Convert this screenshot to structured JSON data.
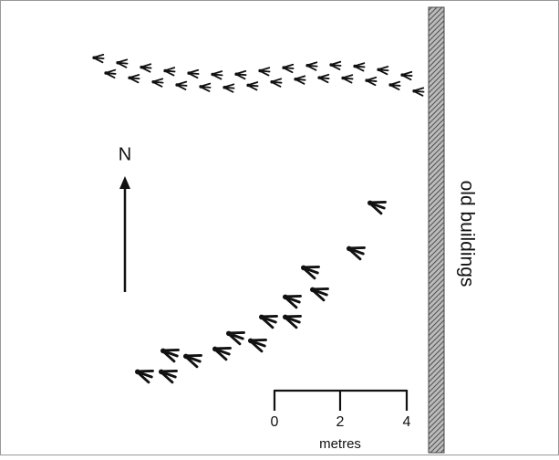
{
  "compass": {
    "label": "N"
  },
  "wall": {
    "label": "old buildings"
  },
  "scale_bar": {
    "ticks": [
      "0",
      "2",
      "4"
    ],
    "unit": "metres"
  }
}
